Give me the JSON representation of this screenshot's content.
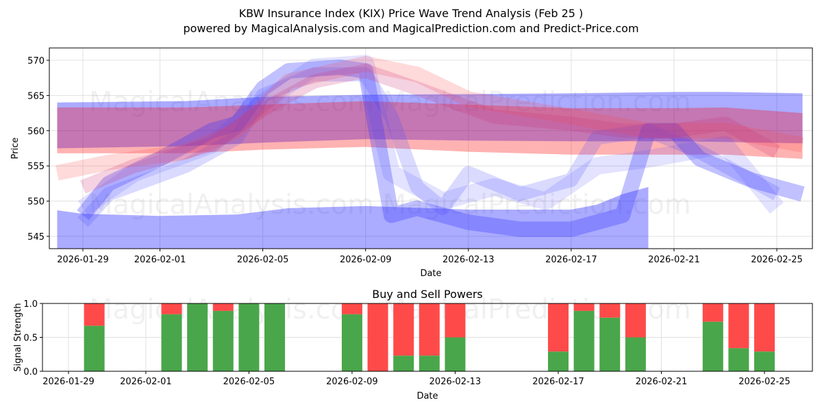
{
  "chart_data": [
    {
      "type": "line",
      "title": "KBW Insurance Index (KIX) Price Wave Trend Analysis (Feb 25 )",
      "subtitle": "powered by MagicalAnalysis.com and MagicalPrediction.com and Predict-Price.com",
      "xlabel": "Date",
      "ylabel": "Price",
      "xlim": [
        "2026-01-27T16:00",
        "2026-02-26T12:00"
      ],
      "ylim": [
        543.25,
        571.75
      ],
      "yticks": [
        545,
        550,
        555,
        560,
        565,
        570
      ],
      "xticks": [
        "2026-01-29",
        "2026-02-01",
        "2026-02-05",
        "2026-02-09",
        "2026-02-13",
        "2026-02-17",
        "2026-02-21",
        "2026-02-25"
      ],
      "grid": true,
      "watermark": "MagicalAnalysis.com   MagicalPrediction.com",
      "bands": [
        {
          "name": "blue-upper-band",
          "color": "#0000ff",
          "opacity": 0.33,
          "x": [
            "2026-01-28",
            "2026-02-02",
            "2026-02-05",
            "2026-02-09",
            "2026-02-13",
            "2026-02-17",
            "2026-02-21",
            "2026-02-23",
            "2026-02-26"
          ],
          "upper": [
            564,
            564.2,
            564.8,
            565.1,
            565.2,
            565.3,
            565.5,
            565.5,
            565.3
          ],
          "lower": [
            557.5,
            557.8,
            558.3,
            558.8,
            558.6,
            558.5,
            558.5,
            558.4,
            558.2
          ]
        },
        {
          "name": "red-band",
          "color": "#ff0000",
          "opacity": 0.3,
          "x": [
            "2026-01-28",
            "2026-02-02",
            "2026-02-05",
            "2026-02-09",
            "2026-02-13",
            "2026-02-17",
            "2026-02-21",
            "2026-02-23",
            "2026-02-26"
          ],
          "upper": [
            563.3,
            563.3,
            563.7,
            564.2,
            563.7,
            563.2,
            563.2,
            563.3,
            562.5
          ],
          "lower": [
            556.8,
            556.8,
            557.3,
            557.7,
            557,
            556.6,
            556.6,
            556.6,
            556
          ]
        },
        {
          "name": "blue-lower-band",
          "color": "#0000ff",
          "opacity": 0.33,
          "x": [
            "2026-01-28",
            "2026-01-29",
            "2026-02-01",
            "2026-02-04",
            "2026-02-06",
            "2026-02-09",
            "2026-02-13",
            "2026-02-17",
            "2026-02-18",
            "2026-02-19",
            "2026-02-20"
          ],
          "upper": [
            548.7,
            548.2,
            547.9,
            548.1,
            549,
            549.3,
            548.8,
            548.8,
            549.5,
            551,
            552
          ],
          "lower": [
            540,
            540,
            540,
            540,
            540,
            540,
            540,
            540,
            540,
            540,
            540
          ]
        }
      ],
      "waves": [
        {
          "name": "blue-wave-main",
          "color": "#3333ff",
          "opacity": 0.3,
          "width": 2.2,
          "x": [
            "2026-01-29",
            "2026-01-30",
            "2026-02-01",
            "2026-02-03",
            "2026-02-04",
            "2026-02-05",
            "2026-02-06",
            "2026-02-08",
            "2026-02-09",
            "2026-02-10",
            "2026-02-11",
            "2026-02-13",
            "2026-02-15",
            "2026-02-17",
            "2026-02-19",
            "2026-02-20",
            "2026-02-21",
            "2026-02-22",
            "2026-02-24",
            "2026-02-26"
          ],
          "y": [
            548,
            552.5,
            556,
            560,
            561,
            566,
            568.5,
            569,
            568.5,
            548,
            549,
            547,
            546,
            546,
            548,
            560,
            560,
            556,
            553,
            551
          ]
        },
        {
          "name": "blue-wave-2",
          "color": "#4444ff",
          "opacity": 0.2,
          "width": 2,
          "x": [
            "2026-01-29",
            "2026-01-30",
            "2026-02-02",
            "2026-02-04",
            "2026-02-05",
            "2026-02-07",
            "2026-02-09",
            "2026-02-10",
            "2026-02-11",
            "2026-02-12",
            "2026-02-13",
            "2026-02-15",
            "2026-02-17",
            "2026-02-18",
            "2026-02-20",
            "2026-02-22",
            "2026-02-24",
            "2026-02-25"
          ],
          "y": [
            547,
            551,
            555,
            559,
            565,
            568,
            568,
            562,
            552,
            549,
            554,
            551,
            553,
            559,
            560,
            557,
            553,
            551
          ]
        },
        {
          "name": "blue-wave-3",
          "color": "#4444ff",
          "opacity": 0.15,
          "width": 2.5,
          "x": [
            "2026-01-29",
            "2026-01-31",
            "2026-02-03",
            "2026-02-05",
            "2026-02-07",
            "2026-02-09",
            "2026-02-10",
            "2026-02-12",
            "2026-02-14",
            "2026-02-16",
            "2026-02-18",
            "2026-02-20",
            "2026-02-23",
            "2026-02-25"
          ],
          "y": [
            549,
            554,
            558,
            564,
            569,
            569.5,
            554,
            550,
            552,
            550,
            555,
            556,
            558,
            549
          ]
        },
        {
          "name": "red-wave-1",
          "color": "#ff4444",
          "opacity": 0.2,
          "width": 2.2,
          "x": [
            "2026-01-28",
            "2026-01-30",
            "2026-02-02",
            "2026-02-04",
            "2026-02-06",
            "2026-02-09",
            "2026-02-11",
            "2026-02-13",
            "2026-02-17",
            "2026-02-20",
            "2026-02-23",
            "2026-02-26"
          ],
          "y": [
            554,
            555.5,
            557,
            560,
            567,
            569.5,
            568,
            564.5,
            562,
            560,
            560,
            558
          ]
        },
        {
          "name": "red-wave-2",
          "color": "#cc3377",
          "opacity": 0.22,
          "width": 2,
          "x": [
            "2026-01-29",
            "2026-01-31",
            "2026-02-03",
            "2026-02-05",
            "2026-02-07",
            "2026-02-09",
            "2026-02-11",
            "2026-02-14",
            "2026-02-17",
            "2026-02-19",
            "2026-02-21",
            "2026-02-23",
            "2026-02-25"
          ],
          "y": [
            552,
            555,
            558,
            563,
            567,
            568.5,
            566,
            562,
            561,
            560,
            560,
            561,
            557
          ]
        }
      ]
    },
    {
      "type": "bar",
      "title": "Buy and Sell Powers",
      "xlabel": "Date",
      "ylabel": "Signal Strength",
      "ylim": [
        0,
        1
      ],
      "yticks": [
        "0.0",
        "0.5",
        "1.0"
      ],
      "xticks": [
        "2026-01-29",
        "2026-02-01",
        "2026-02-05",
        "2026-02-09",
        "2026-02-13",
        "2026-02-17",
        "2026-02-21",
        "2026-02-25"
      ],
      "colors": {
        "buy": "#4aa64a",
        "sell": "#ff4a4a"
      },
      "categories": [
        "2026-01-30",
        "2026-02-02",
        "2026-02-03",
        "2026-02-04",
        "2026-02-05",
        "2026-02-06",
        "2026-02-09",
        "2026-02-10",
        "2026-02-11",
        "2026-02-12",
        "2026-02-13",
        "2026-02-17",
        "2026-02-18",
        "2026-02-19",
        "2026-02-20",
        "2026-02-23",
        "2026-02-24",
        "2026-02-25"
      ],
      "buy": [
        0.67,
        0.84,
        1.0,
        0.89,
        1.0,
        1.0,
        0.84,
        0.0,
        0.23,
        0.23,
        0.5,
        0.29,
        0.89,
        0.79,
        0.5,
        0.73,
        0.34,
        0.29
      ]
    }
  ]
}
